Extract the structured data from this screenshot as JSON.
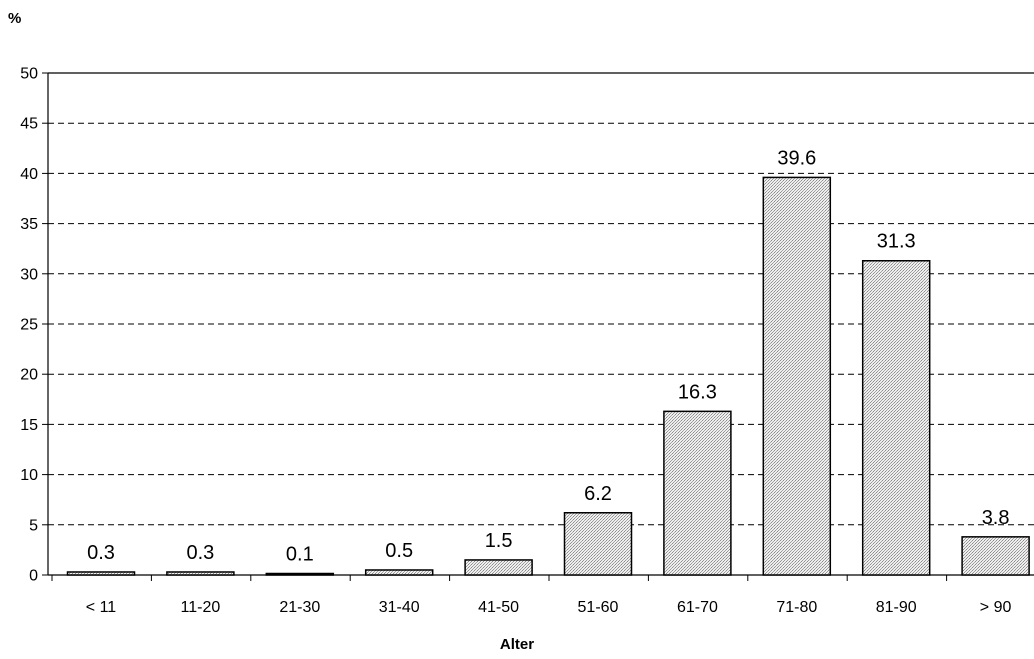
{
  "chart_data": {
    "type": "bar",
    "ylabel": "%",
    "xlabel": "Alter",
    "categories": [
      "< 11",
      "11-20",
      "21-30",
      "31-40",
      "41-50",
      "51-60",
      "61-70",
      "71-80",
      "81-90",
      "> 90"
    ],
    "values": [
      0.3,
      0.3,
      0.1,
      0.5,
      1.5,
      6.2,
      16.3,
      39.6,
      31.3,
      3.8
    ],
    "data_labels": [
      "0.3",
      "0.3",
      "0.1",
      "0.5",
      "1.5",
      "6.2",
      "16.3",
      "39.6",
      "31.3",
      "3.8"
    ],
    "yticks": [
      0,
      5,
      10,
      15,
      20,
      25,
      30,
      35,
      40,
      45,
      50
    ],
    "ylim": [
      0,
      50
    ],
    "grid": "horizontal dashed",
    "bar_color": "#d9d9d9",
    "bar_pattern": "fine stipple"
  }
}
